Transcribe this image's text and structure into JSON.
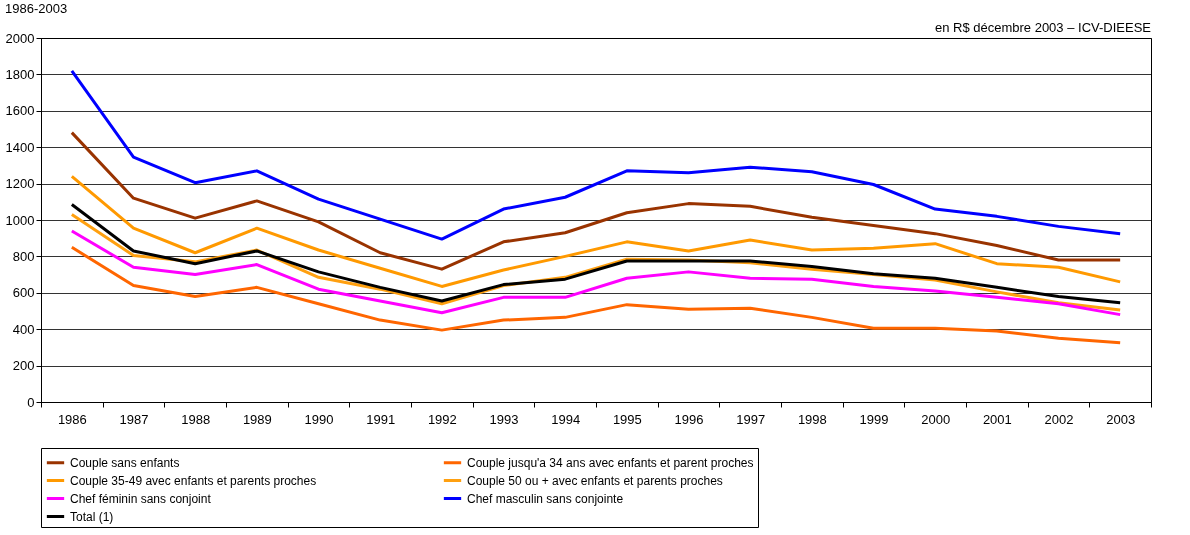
{
  "chart_data": {
    "type": "line",
    "title": "1986-2003",
    "annotations": [
      "en R$ décembre 2003 – ICV-DIEESE"
    ],
    "categories": [
      "1986",
      "1987",
      "1988",
      "1989",
      "1990",
      "1991",
      "1992",
      "1993",
      "1994",
      "1995",
      "1996",
      "1997",
      "1998",
      "1999",
      "2000",
      "2001",
      "2002",
      "2003"
    ],
    "series": [
      {
        "name": "Couple sans enfants",
        "color": "#993300",
        "values": [
          1480,
          1120,
          1010,
          1105,
          990,
          820,
          730,
          880,
          930,
          1040,
          1090,
          1075,
          1015,
          970,
          925,
          860,
          780,
          780
        ]
      },
      {
        "name": "Couple jusqu'a 34 ans avec enfants et parent proches",
        "color": "#ff6600",
        "values": [
          850,
          640,
          580,
          630,
          540,
          450,
          395,
          450,
          465,
          535,
          510,
          515,
          465,
          405,
          405,
          390,
          350,
          325
        ]
      },
      {
        "name": "Couple 35-49 avec enfants et parents proches",
        "color": "#ff9900",
        "values": [
          1240,
          955,
          820,
          955,
          835,
          735,
          635,
          725,
          800,
          880,
          830,
          890,
          835,
          845,
          870,
          760,
          740,
          660
        ]
      },
      {
        "name": "Couple 50 ou + avec enfants et parents proches",
        "color": "#ffa010",
        "values": [
          1030,
          805,
          770,
          835,
          685,
          620,
          540,
          640,
          685,
          785,
          780,
          765,
          730,
          700,
          670,
          605,
          545,
          505
        ]
      },
      {
        "name": "Chef féminin sans conjoint",
        "color": "#ff00ff",
        "values": [
          940,
          740,
          700,
          755,
          620,
          555,
          490,
          575,
          575,
          680,
          715,
          680,
          675,
          635,
          610,
          575,
          540,
          480
        ]
      },
      {
        "name": "Chef masculin sans conjointe",
        "color": "#0000ff",
        "values": [
          1820,
          1345,
          1205,
          1270,
          1115,
          1005,
          895,
          1060,
          1125,
          1270,
          1260,
          1290,
          1265,
          1195,
          1060,
          1020,
          965,
          925
        ]
      },
      {
        "name": "Total (1)",
        "color": "#000000",
        "values": [
          1085,
          830,
          760,
          830,
          715,
          630,
          555,
          645,
          675,
          775,
          775,
          775,
          745,
          705,
          680,
          630,
          580,
          545
        ]
      }
    ],
    "ylim": [
      0,
      2000
    ],
    "yticks": [
      0,
      200,
      400,
      600,
      800,
      1000,
      1200,
      1400,
      1600,
      1800,
      2000
    ],
    "grid": "y",
    "legend": "bottom",
    "marker": "none",
    "line_style": "solid"
  }
}
